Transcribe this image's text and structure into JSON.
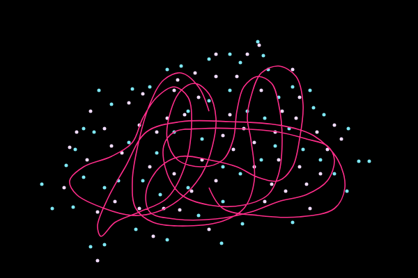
{
  "chart_data": {
    "type": "scatter",
    "xlim": [
      0,
      600
    ],
    "ylim": [
      0,
      400
    ],
    "tick_labels": false,
    "grid": false,
    "series": [
      {
        "type": "scatter",
        "marker": "circle",
        "color": "#7ee8f5",
        "x": [
          370,
          378,
          345,
          330,
          300,
          260,
          240,
          215,
          190,
          160,
          142,
          120,
          135,
          108,
          95,
          60,
          75,
          105,
          130,
          150,
          195,
          240,
          318,
          348,
          420,
          498,
          515,
          530,
          500,
          465,
          450,
          445,
          420,
          400,
          380,
          355,
          330,
          300,
          270,
          250,
          225,
          205,
          230,
          270,
          290,
          320,
          345,
          375,
          395,
          415,
          435,
          460,
          480,
          170,
          150,
          120,
          185,
          385,
          285,
          320
        ],
        "y": [
          340,
          320,
          310,
          322,
          315,
          305,
          300,
          275,
          272,
          250,
          270,
          215,
          210,
          185,
          162,
          135,
          100,
          102,
          45,
          48,
          70,
          55,
          50,
          78,
          80,
          125,
          168,
          168,
          215,
          235,
          245,
          270,
          275,
          260,
          230,
          240,
          270,
          255,
          240,
          210,
          180,
          140,
          120,
          130,
          200,
          160,
          150,
          170,
          190,
          215,
          185,
          170,
          150,
          140,
          130,
          145,
          195,
          300,
          90,
          110
        ]
      },
      {
        "type": "scatter",
        "marker": "circle",
        "color": "#f2dcff",
        "x": [
          372,
          355,
          310,
          280,
          205,
          185,
          150,
          160,
          125,
          100,
          92,
          140,
          165,
          200,
          258,
          275,
          310,
          335,
          365,
          390,
          410,
          440,
          470,
          490,
          455,
          425,
          405,
          375,
          340,
          310,
          285,
          265,
          240,
          225,
          215,
          250,
          290,
          320,
          350,
          365,
          400,
          430,
          460,
          445,
          380,
          300,
          220,
          140,
          175,
          200,
          250,
          330,
          395,
          430,
          480,
          130,
          420,
          255,
          110,
          235
        ],
        "y": [
          335,
          322,
          322,
          295,
          265,
          252,
          215,
          190,
          170,
          188,
          130,
          95,
          110,
          100,
          98,
          125,
          140,
          185,
          160,
          135,
          125,
          135,
          185,
          200,
          210,
          230,
          240,
          270,
          290,
          290,
          260,
          235,
          230,
          210,
          160,
          150,
          170,
          205,
          215,
          195,
          170,
          160,
          150,
          100,
          110,
          70,
          60,
          25,
          180,
          220,
          270,
          235,
          210,
          260,
          220,
          240,
          300,
          285,
          210,
          100
        ]
      },
      {
        "type": "line",
        "color": "#ff2d8a",
        "x": [
          300,
          285,
          260,
          235,
          215,
          200,
          190,
          195,
          220,
          270,
          320,
          350,
          365,
          360,
          355,
          360,
          375,
          400,
          425,
          435,
          430,
          420,
          400,
          370,
          340,
          300,
          260,
          230,
          210,
          215,
          250,
          310,
          360,
          400,
          440,
          470,
          480,
          470,
          440,
          400,
          340,
          290,
          250,
          235,
          240,
          260,
          300,
          350,
          385,
          400,
          405,
          400,
          390,
          370,
          350,
          340,
          335,
          320,
          290,
          255,
          240,
          245,
          260,
          280,
          300,
          310,
          305,
          290,
          260,
          225,
          190,
          150,
          110,
          100,
          120,
          160,
          190,
          205,
          225,
          250,
          270,
          275,
          265,
          240,
          200,
          165,
          145,
          140,
          155,
          180,
          210,
          260,
          330,
          400,
          450,
          485,
          495,
          480,
          430,
          370,
          320,
          300
        ],
        "y": [
          240,
          275,
          295,
          285,
          250,
          200,
          140,
          100,
          80,
          75,
          82,
          100,
          140,
          200,
          230,
          260,
          295,
          305,
          290,
          250,
          200,
          160,
          140,
          145,
          160,
          170,
          175,
          160,
          125,
          95,
          85,
          85,
          95,
          110,
          120,
          140,
          170,
          190,
          200,
          210,
          215,
          215,
          210,
          190,
          150,
          120,
          105,
          105,
          120,
          150,
          200,
          250,
          280,
          290,
          275,
          240,
          200,
          170,
          160,
          170,
          200,
          240,
          270,
          280,
          265,
          230,
          190,
          150,
          115,
          95,
          90,
          100,
          120,
          140,
          160,
          175,
          195,
          230,
          260,
          275,
          260,
          220,
          160,
          115,
          95,
          80,
          60,
          75,
          115,
          160,
          210,
          225,
          225,
          220,
          205,
          170,
          130,
          100,
          88,
          90,
          100,
          130
        ]
      }
    ]
  }
}
